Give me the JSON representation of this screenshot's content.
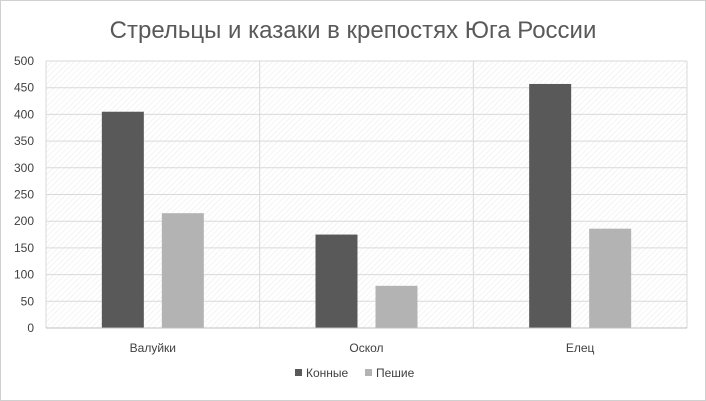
{
  "chart_data": {
    "type": "bar",
    "title": "Стрельцы и казаки в крепостях Юга России",
    "categories": [
      "Валуйки",
      "Оскол",
      "Елец"
    ],
    "series": [
      {
        "name": "Конные",
        "values": [
          405,
          175,
          457
        ],
        "color": "#595959"
      },
      {
        "name": "Пешие",
        "values": [
          215,
          79,
          186
        ],
        "color": "#b3b3b3"
      }
    ],
    "ylim": [
      0,
      500
    ],
    "yticks": [
      0,
      50,
      100,
      150,
      200,
      250,
      300,
      350,
      400,
      450,
      500
    ],
    "grid": true,
    "legend_position": "bottom"
  }
}
